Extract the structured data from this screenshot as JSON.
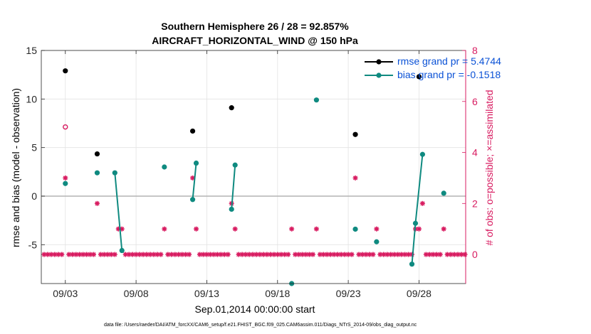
{
  "chart_data": {
    "type": "scatter",
    "title_line1": "Southern Hemisphere 26 / 28 = 92.857%",
    "title_line2": "AIRCRAFT_HORIZONTAL_WIND @ 150 hPa",
    "xlabel": "Sep.01,2014 00:00:00 start",
    "ylabel_left": "rmse and bias (model - observation)",
    "ylabel_right": "# of obs: o=possible; ×=assimilated",
    "footnote": "data file: /Users/raeder/DAI/ATM_forcXX/CAM6_setup/f.e21.FHIST_BGC.f09_025.CAM6assim.011/Diags_NTrS_2014-09/obs_diag_output.nc",
    "x_range": [
      1.3,
      31.3
    ],
    "x_ticks": [
      3,
      8,
      13,
      18,
      23,
      28
    ],
    "x_tick_labels": [
      "09/03",
      "09/08",
      "09/13",
      "09/18",
      "09/23",
      "09/28"
    ],
    "y_left_range": [
      -9,
      15
    ],
    "y_left_ticks": [
      -5,
      0,
      5,
      10,
      15
    ],
    "y_right_range": [
      -1.14,
      8
    ],
    "y_right_ticks": [
      0,
      2,
      4,
      6,
      8
    ],
    "grid": true,
    "zero_line": true,
    "legend_position": "top-right",
    "colors": {
      "rmse": "#000000",
      "bias": "#0f8a80",
      "obs": "#d81b60",
      "zero": "#b3b3b3",
      "legend_text": "#0b52d6",
      "right_axis": "#d81b60"
    },
    "series": [
      {
        "name": "rmse grand pr = 5.4744",
        "segments": [
          [
            [
              3.0,
              12.9
            ]
          ],
          [
            [
              5.25,
              4.35
            ]
          ],
          [
            [
              12.0,
              6.7
            ]
          ],
          [
            [
              14.75,
              9.1
            ]
          ],
          [
            [
              23.5,
              6.35
            ]
          ],
          [
            [
              28.0,
              12.3
            ]
          ]
        ]
      },
      {
        "name": "bias grand pr = -0.1518",
        "segments": [
          [
            [
              3.0,
              1.3
            ]
          ],
          [
            [
              5.25,
              2.4
            ]
          ],
          [
            [
              6.5,
              2.4
            ],
            [
              7.0,
              -5.6
            ]
          ],
          [
            [
              10.0,
              3.0
            ]
          ],
          [
            [
              12.0,
              -0.35
            ],
            [
              12.25,
              3.4
            ]
          ],
          [
            [
              14.75,
              -1.35
            ],
            [
              15.0,
              3.2
            ]
          ],
          [
            [
              19.0,
              -9.0
            ]
          ],
          [
            [
              20.75,
              9.9
            ]
          ],
          [
            [
              23.5,
              -3.4
            ]
          ],
          [
            [
              25.0,
              -4.7
            ]
          ],
          [
            [
              27.5,
              -7.0
            ],
            [
              27.75,
              -2.8
            ],
            [
              28.25,
              4.3
            ]
          ],
          [
            [
              29.75,
              0.3
            ]
          ]
        ]
      }
    ],
    "obs_possible": [
      [
        3.0,
        5.0
      ]
    ],
    "obs_assimilated": [
      [
        3.0,
        3.0
      ],
      [
        5.25,
        2.0
      ],
      [
        6.75,
        1.0
      ],
      [
        7.0,
        1.0
      ],
      [
        10.0,
        1.0
      ],
      [
        12.0,
        3.0
      ],
      [
        12.25,
        1.0
      ],
      [
        14.75,
        2.0
      ],
      [
        15.0,
        1.0
      ],
      [
        19.0,
        1.0
      ],
      [
        20.75,
        1.0
      ],
      [
        23.5,
        3.0
      ],
      [
        25.0,
        1.0
      ],
      [
        27.75,
        1.0
      ],
      [
        28.0,
        1.0
      ],
      [
        28.25,
        2.0
      ],
      [
        29.75,
        1.0
      ]
    ],
    "obs_zero_ranges": [
      [
        1.5,
        2.75
      ],
      [
        3.25,
        5.0
      ],
      [
        5.5,
        6.5
      ],
      [
        7.25,
        9.75
      ],
      [
        10.25,
        11.75
      ],
      [
        12.5,
        14.5
      ],
      [
        15.25,
        18.75
      ],
      [
        19.25,
        20.5
      ],
      [
        21.0,
        23.25
      ],
      [
        23.75,
        24.75
      ],
      [
        25.25,
        27.5
      ],
      [
        28.5,
        29.5
      ],
      [
        30.0,
        31.25
      ]
    ],
    "obs_step": 0.25
  }
}
